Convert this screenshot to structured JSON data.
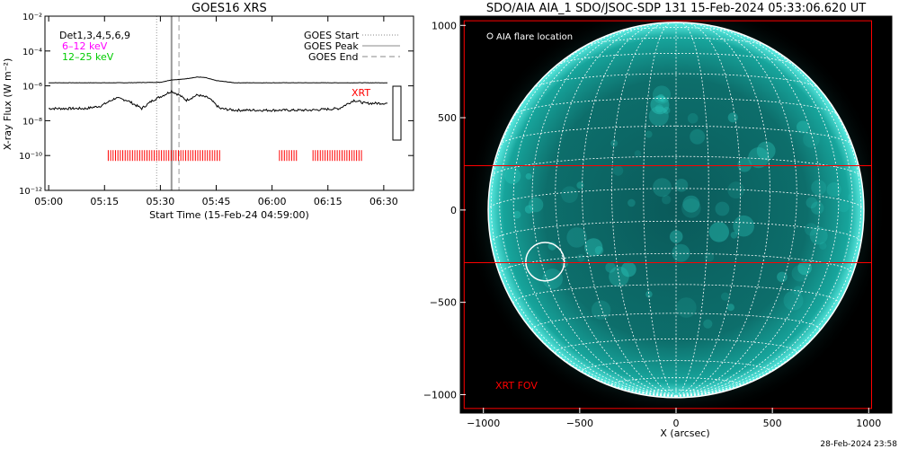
{
  "colors": {
    "background": "#ffffff",
    "ink": "#000000",
    "low_band": "#ff00ff",
    "high_band": "#00cc00",
    "xrt": "#ff0000",
    "sun": "#0e8d86",
    "sun_bright": "#5ff0e6",
    "grid": "#ffffff"
  },
  "left_panel": {
    "title": "GOES16 XRS",
    "detectors": "Det1,3,4,5,6,9",
    "low_band_label": "6–12 keV",
    "high_band_label": "12–25 keV",
    "xrt_label": "XRT",
    "ylabel": "X-ray Flux (W m⁻²)",
    "xlabel": "Start Time (15-Feb-24 04:59:00)",
    "legend": [
      "GOES Start",
      "GOES Peak",
      "GOES End"
    ]
  },
  "right_panel": {
    "title": "SDO/AIA AIA_1 SDO/JSOC-SDP 131 15-Feb-2024 05:33:06.620 UT",
    "flare_label": "AIA flare location",
    "fov_label": "XRT FOV",
    "xlabel": "X (arcsec)"
  },
  "footer_timestamp": "28-Feb-2024 23:58",
  "chart_data": [
    {
      "type": "line",
      "title": "GOES16 XRS",
      "xlabel": "Start Time (15-Feb-24 04:59:00)",
      "ylabel": "X-ray Flux (W m⁻²)",
      "y_scale": "log",
      "xlim": [
        "05:00",
        "06:35"
      ],
      "ylim": [
        1e-12,
        0.01
      ],
      "x_ticks": [
        "05:00",
        "05:15",
        "05:30",
        "05:45",
        "06:00",
        "06:15",
        "06:30"
      ],
      "y_ticks": [
        {
          "value": 0.01,
          "label": "10⁻²"
        },
        {
          "value": 0.0001,
          "label": "10⁻⁴"
        },
        {
          "value": 1e-06,
          "label": "10⁻⁶"
        },
        {
          "value": 1e-08,
          "label": "10⁻⁸"
        },
        {
          "value": 1e-10,
          "label": "10⁻¹⁰"
        },
        {
          "value": 1e-12,
          "label": "10⁻¹²"
        }
      ],
      "series": [
        {
          "name": "6–12 keV",
          "x": [
            "05:00",
            "05:10",
            "05:20",
            "05:30",
            "05:33",
            "05:36",
            "05:40",
            "05:42",
            "05:45",
            "05:50",
            "06:00",
            "06:10",
            "06:20",
            "06:30",
            "06:31"
          ],
          "y": [
            1.5e-06,
            1.5e-06,
            1.5e-06,
            1.6e-06,
            2.2e-06,
            2.4e-06,
            3.2e-06,
            3e-06,
            2e-06,
            1.5e-06,
            1.5e-06,
            1.5e-06,
            1.5e-06,
            1.5e-06,
            1.5e-06
          ]
        },
        {
          "name": "12–25 keV",
          "x": [
            "05:00",
            "05:10",
            "05:14",
            "05:18",
            "05:21",
            "05:25",
            "05:28",
            "05:31",
            "05:33",
            "05:35",
            "05:37",
            "05:40",
            "05:43",
            "05:46",
            "05:50",
            "06:00",
            "06:10",
            "06:18",
            "06:22",
            "06:25",
            "06:30",
            "06:31"
          ],
          "y": [
            5e-08,
            5e-08,
            7e-08,
            2e-07,
            1.5e-07,
            5e-08,
            1.5e-07,
            3e-07,
            5e-07,
            3e-07,
            1.5e-07,
            3e-07,
            2e-07,
            5e-08,
            4e-08,
            4e-08,
            4e-08,
            5e-08,
            1.5e-07,
            1e-07,
            1e-07,
            1e-07
          ]
        }
      ],
      "markers": {
        "GOES Start": "05:29",
        "GOES Peak": "05:33",
        "GOES End": "05:35"
      },
      "xrt_coverage": [
        [
          "05:16",
          "05:46"
        ],
        [
          "06:02",
          "06:07"
        ],
        [
          "06:11",
          "06:24"
        ]
      ]
    },
    {
      "type": "scatter",
      "title": "SDO/AIA AIA_1 SDO/JSOC-SDP 131 15-Feb-2024 05:33:06.620 UT",
      "xlabel": "X (arcsec)",
      "ylabel": "",
      "xlim": [
        -1120,
        1120
      ],
      "ylim": [
        -1100,
        1050
      ],
      "x_ticks": [
        -1000,
        -500,
        0,
        500,
        1000
      ],
      "y_ticks": [
        -1000,
        -500,
        0,
        500,
        1000
      ],
      "y_tick_labels": [
        "−1000",
        "−500",
        "0",
        "500",
        "1000"
      ],
      "x_tick_labels": [
        "−1000",
        "−500",
        "0",
        "500",
        "1000"
      ],
      "solar_radius_arcsec": 975,
      "flare_location": {
        "x": -680,
        "y": -280,
        "radius": 100
      },
      "xrt_fov": {
        "x0": -1100,
        "x1": 1015,
        "y0": -1075,
        "y1": 1025
      },
      "xrt_strip": {
        "y0": -285,
        "y1": 240
      }
    }
  ]
}
